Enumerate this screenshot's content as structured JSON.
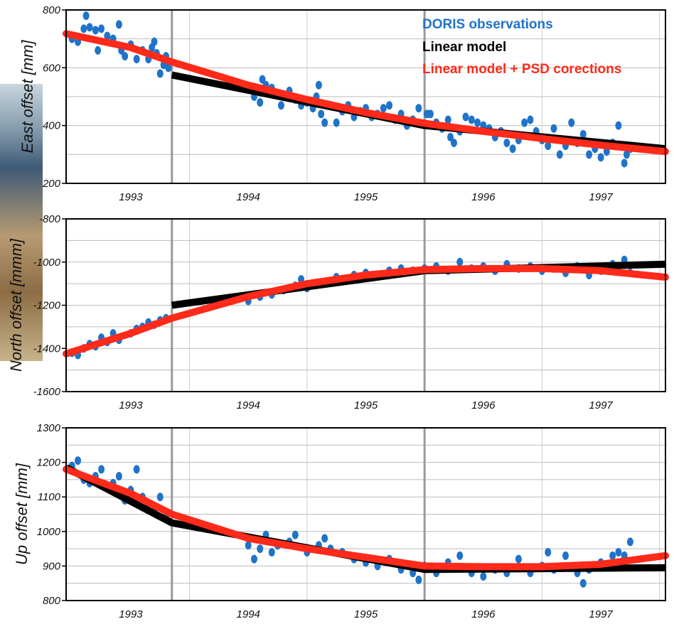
{
  "chart_data": [
    {
      "type": "scatter",
      "ylabel": "East offset [mm]",
      "ylim": [
        200,
        800
      ],
      "yticks": [
        200,
        400,
        600,
        800
      ],
      "xlim": [
        1992.45,
        1997.55
      ],
      "xticks": [
        1993,
        1994,
        1995,
        1996,
        1997
      ],
      "events": [
        1993.35,
        1995.5
      ],
      "legend": {
        "placement": "top-right",
        "entries": [
          {
            "label": "DORIS observations",
            "color": "#1f73c9"
          },
          {
            "label": "Linear model",
            "color": "#000000"
          },
          {
            "label": "Linear model + PSD  corections",
            "color": "#ff2a1a"
          }
        ]
      },
      "series": [
        {
          "name": "DORIS observations",
          "color": "#1f73c9",
          "points": [
            [
              1992.5,
              700
            ],
            [
              1992.55,
              690
            ],
            [
              1992.6,
              735
            ],
            [
              1992.62,
              780
            ],
            [
              1992.65,
              740
            ],
            [
              1992.7,
              730
            ],
            [
              1992.72,
              660
            ],
            [
              1992.75,
              735
            ],
            [
              1992.8,
              710
            ],
            [
              1992.85,
              700
            ],
            [
              1992.9,
              750
            ],
            [
              1992.92,
              660
            ],
            [
              1992.95,
              640
            ],
            [
              1993.0,
              680
            ],
            [
              1993.05,
              630
            ],
            [
              1993.1,
              660
            ],
            [
              1993.15,
              630
            ],
            [
              1993.18,
              670
            ],
            [
              1993.2,
              690
            ],
            [
              1993.22,
              650
            ],
            [
              1993.25,
              580
            ],
            [
              1993.28,
              610
            ],
            [
              1993.3,
              640
            ],
            [
              1993.32,
              600
            ],
            [
              1994.05,
              500
            ],
            [
              1994.1,
              480
            ],
            [
              1994.12,
              560
            ],
            [
              1994.15,
              540
            ],
            [
              1994.2,
              530
            ],
            [
              1994.25,
              510
            ],
            [
              1994.28,
              470
            ],
            [
              1994.32,
              500
            ],
            [
              1994.35,
              520
            ],
            [
              1994.4,
              490
            ],
            [
              1994.45,
              470
            ],
            [
              1994.5,
              480
            ],
            [
              1994.55,
              460
            ],
            [
              1994.58,
              500
            ],
            [
              1994.6,
              540
            ],
            [
              1994.62,
              440
            ],
            [
              1994.65,
              410
            ],
            [
              1994.7,
              470
            ],
            [
              1994.75,
              410
            ],
            [
              1994.8,
              450
            ],
            [
              1994.85,
              470
            ],
            [
              1994.9,
              430
            ],
            [
              1994.95,
              450
            ],
            [
              1995.0,
              460
            ],
            [
              1995.05,
              430
            ],
            [
              1995.1,
              440
            ],
            [
              1995.15,
              460
            ],
            [
              1995.2,
              470
            ],
            [
              1995.25,
              420
            ],
            [
              1995.3,
              440
            ],
            [
              1995.35,
              400
            ],
            [
              1995.4,
              420
            ],
            [
              1995.45,
              460
            ],
            [
              1995.52,
              440
            ],
            [
              1995.55,
              440
            ],
            [
              1995.6,
              410
            ],
            [
              1995.65,
              390
            ],
            [
              1995.7,
              420
            ],
            [
              1995.72,
              360
            ],
            [
              1995.75,
              340
            ],
            [
              1995.8,
              380
            ],
            [
              1995.85,
              430
            ],
            [
              1995.9,
              420
            ],
            [
              1995.95,
              410
            ],
            [
              1996.0,
              400
            ],
            [
              1996.05,
              390
            ],
            [
              1996.1,
              360
            ],
            [
              1996.15,
              380
            ],
            [
              1996.2,
              340
            ],
            [
              1996.25,
              320
            ],
            [
              1996.3,
              350
            ],
            [
              1996.35,
              410
            ],
            [
              1996.4,
              420
            ],
            [
              1996.45,
              380
            ],
            [
              1996.5,
              350
            ],
            [
              1996.55,
              330
            ],
            [
              1996.6,
              390
            ],
            [
              1996.65,
              300
            ],
            [
              1996.7,
              330
            ],
            [
              1996.75,
              410
            ],
            [
              1996.8,
              340
            ],
            [
              1996.85,
              370
            ],
            [
              1996.9,
              300
            ],
            [
              1996.95,
              320
            ],
            [
              1997.0,
              290
            ],
            [
              1997.05,
              310
            ],
            [
              1997.1,
              340
            ],
            [
              1997.15,
              400
            ],
            [
              1997.18,
              330
            ],
            [
              1997.2,
              270
            ],
            [
              1997.22,
              300
            ],
            [
              1997.25,
              320
            ]
          ]
        },
        {
          "name": "Linear model",
          "color": "#000000",
          "x": [
            1993.35,
            1995.5,
            1997.55
          ],
          "y": [
            575,
            400,
            320
          ]
        },
        {
          "name": "Linear model + PSD  corections",
          "color": "#ff2a1a",
          "x": [
            1992.45,
            1993.0,
            1993.35,
            1994.0,
            1994.5,
            1995.0,
            1995.5,
            1996.0,
            1996.5,
            1997.0,
            1997.55
          ],
          "y": [
            718,
            670,
            620,
            540,
            490,
            445,
            408,
            380,
            355,
            332,
            310
          ]
        }
      ]
    },
    {
      "type": "scatter",
      "ylabel": "North offset [mmm]",
      "ylim": [
        -1600,
        -800
      ],
      "yticks": [
        -1600,
        -1400,
        -1200,
        -1000,
        -800
      ],
      "xlim": [
        1992.45,
        1997.55
      ],
      "xticks": [
        1993,
        1994,
        1995,
        1996,
        1997
      ],
      "events": [
        1993.35,
        1995.5
      ],
      "series": [
        {
          "name": "DORIS observations",
          "color": "#1f73c9",
          "points": [
            [
              1992.5,
              -1420
            ],
            [
              1992.55,
              -1430
            ],
            [
              1992.6,
              -1400
            ],
            [
              1992.65,
              -1380
            ],
            [
              1992.7,
              -1390
            ],
            [
              1992.75,
              -1350
            ],
            [
              1992.8,
              -1370
            ],
            [
              1992.85,
              -1330
            ],
            [
              1992.9,
              -1360
            ],
            [
              1993.0,
              -1330
            ],
            [
              1993.05,
              -1310
            ],
            [
              1993.1,
              -1300
            ],
            [
              1993.15,
              -1280
            ],
            [
              1993.2,
              -1290
            ],
            [
              1993.25,
              -1270
            ],
            [
              1993.3,
              -1260
            ],
            [
              1994.0,
              -1180
            ],
            [
              1994.1,
              -1160
            ],
            [
              1994.2,
              -1150
            ],
            [
              1994.3,
              -1130
            ],
            [
              1994.4,
              -1110
            ],
            [
              1994.45,
              -1080
            ],
            [
              1994.5,
              -1120
            ],
            [
              1994.6,
              -1100
            ],
            [
              1994.7,
              -1090
            ],
            [
              1994.75,
              -1070
            ],
            [
              1994.8,
              -1080
            ],
            [
              1994.9,
              -1060
            ],
            [
              1995.0,
              -1050
            ],
            [
              1995.1,
              -1060
            ],
            [
              1995.2,
              -1040
            ],
            [
              1995.3,
              -1030
            ],
            [
              1995.4,
              -1040
            ],
            [
              1995.5,
              -1030
            ],
            [
              1995.6,
              -1020
            ],
            [
              1995.7,
              -1040
            ],
            [
              1995.8,
              -1000
            ],
            [
              1995.9,
              -1030
            ],
            [
              1996.0,
              -1020
            ],
            [
              1996.1,
              -1040
            ],
            [
              1996.2,
              -1010
            ],
            [
              1996.3,
              -1030
            ],
            [
              1996.4,
              -1020
            ],
            [
              1996.5,
              -1040
            ],
            [
              1996.6,
              -1030
            ],
            [
              1996.7,
              -1050
            ],
            [
              1996.8,
              -1020
            ],
            [
              1996.9,
              -1060
            ],
            [
              1997.0,
              -1040
            ],
            [
              1997.05,
              -1030
            ],
            [
              1997.1,
              -1010
            ],
            [
              1997.2,
              -990
            ],
            [
              1997.25,
              -1050
            ]
          ]
        },
        {
          "name": "Linear model",
          "color": "#000000",
          "x": [
            1993.35,
            1995.5,
            1997.55
          ],
          "y": [
            -1200,
            -1040,
            -1010
          ]
        },
        {
          "name": "Linear model + PSD  corections",
          "color": "#ff2a1a",
          "x": [
            1992.45,
            1993.0,
            1993.35,
            1994.0,
            1994.5,
            1995.0,
            1995.5,
            1996.0,
            1996.5,
            1997.0,
            1997.55
          ],
          "y": [
            -1425,
            -1330,
            -1260,
            -1160,
            -1100,
            -1060,
            -1035,
            -1030,
            -1030,
            -1040,
            -1070
          ]
        }
      ]
    },
    {
      "type": "scatter",
      "ylabel": "Up offset [mm]",
      "ylim": [
        800,
        1300
      ],
      "yticks": [
        800,
        900,
        1000,
        1100,
        1200,
        1300
      ],
      "xlim": [
        1992.45,
        1997.55
      ],
      "xticks": [
        1993,
        1994,
        1995,
        1996,
        1997
      ],
      "events": [
        1993.35,
        1995.5
      ],
      "series": [
        {
          "name": "DORIS observations",
          "color": "#1f73c9",
          "points": [
            [
              1992.5,
              1190
            ],
            [
              1992.55,
              1205
            ],
            [
              1992.6,
              1150
            ],
            [
              1992.65,
              1140
            ],
            [
              1992.7,
              1160
            ],
            [
              1992.75,
              1180
            ],
            [
              1992.8,
              1130
            ],
            [
              1992.85,
              1140
            ],
            [
              1992.9,
              1160
            ],
            [
              1992.95,
              1090
            ],
            [
              1993.0,
              1120
            ],
            [
              1993.05,
              1180
            ],
            [
              1993.1,
              1100
            ],
            [
              1993.15,
              1080
            ],
            [
              1993.2,
              1060
            ],
            [
              1993.25,
              1100
            ],
            [
              1993.3,
              1040
            ],
            [
              1994.0,
              960
            ],
            [
              1994.05,
              920
            ],
            [
              1994.1,
              950
            ],
            [
              1994.15,
              990
            ],
            [
              1994.2,
              940
            ],
            [
              1994.25,
              960
            ],
            [
              1994.35,
              970
            ],
            [
              1994.4,
              990
            ],
            [
              1994.5,
              940
            ],
            [
              1994.6,
              960
            ],
            [
              1994.65,
              980
            ],
            [
              1994.7,
              950
            ],
            [
              1994.8,
              940
            ],
            [
              1994.9,
              920
            ],
            [
              1995.0,
              910
            ],
            [
              1995.1,
              900
            ],
            [
              1995.2,
              920
            ],
            [
              1995.3,
              890
            ],
            [
              1995.4,
              880
            ],
            [
              1995.45,
              860
            ],
            [
              1995.5,
              900
            ],
            [
              1995.6,
              880
            ],
            [
              1995.7,
              910
            ],
            [
              1995.8,
              930
            ],
            [
              1995.9,
              880
            ],
            [
              1996.0,
              870
            ],
            [
              1996.1,
              890
            ],
            [
              1996.2,
              880
            ],
            [
              1996.3,
              920
            ],
            [
              1996.4,
              880
            ],
            [
              1996.5,
              900
            ],
            [
              1996.55,
              940
            ],
            [
              1996.6,
              890
            ],
            [
              1996.7,
              930
            ],
            [
              1996.8,
              880
            ],
            [
              1996.85,
              850
            ],
            [
              1996.9,
              890
            ],
            [
              1997.0,
              910
            ],
            [
              1997.1,
              930
            ],
            [
              1997.15,
              940
            ],
            [
              1997.2,
              930
            ],
            [
              1997.25,
              970
            ]
          ]
        },
        {
          "name": "Linear model",
          "color": "#000000",
          "x": [
            1992.45,
            1993.35,
            1995.5,
            1997.55
          ],
          "y": [
            1185,
            1025,
            890,
            895
          ]
        },
        {
          "name": "Linear model + PSD  corections",
          "color": "#ff2a1a",
          "x": [
            1992.45,
            1993.0,
            1993.35,
            1994.0,
            1994.5,
            1995.0,
            1995.5,
            1996.0,
            1996.5,
            1997.0,
            1997.55
          ],
          "y": [
            1180,
            1110,
            1050,
            980,
            950,
            925,
            900,
            898,
            898,
            905,
            930
          ]
        }
      ]
    }
  ]
}
